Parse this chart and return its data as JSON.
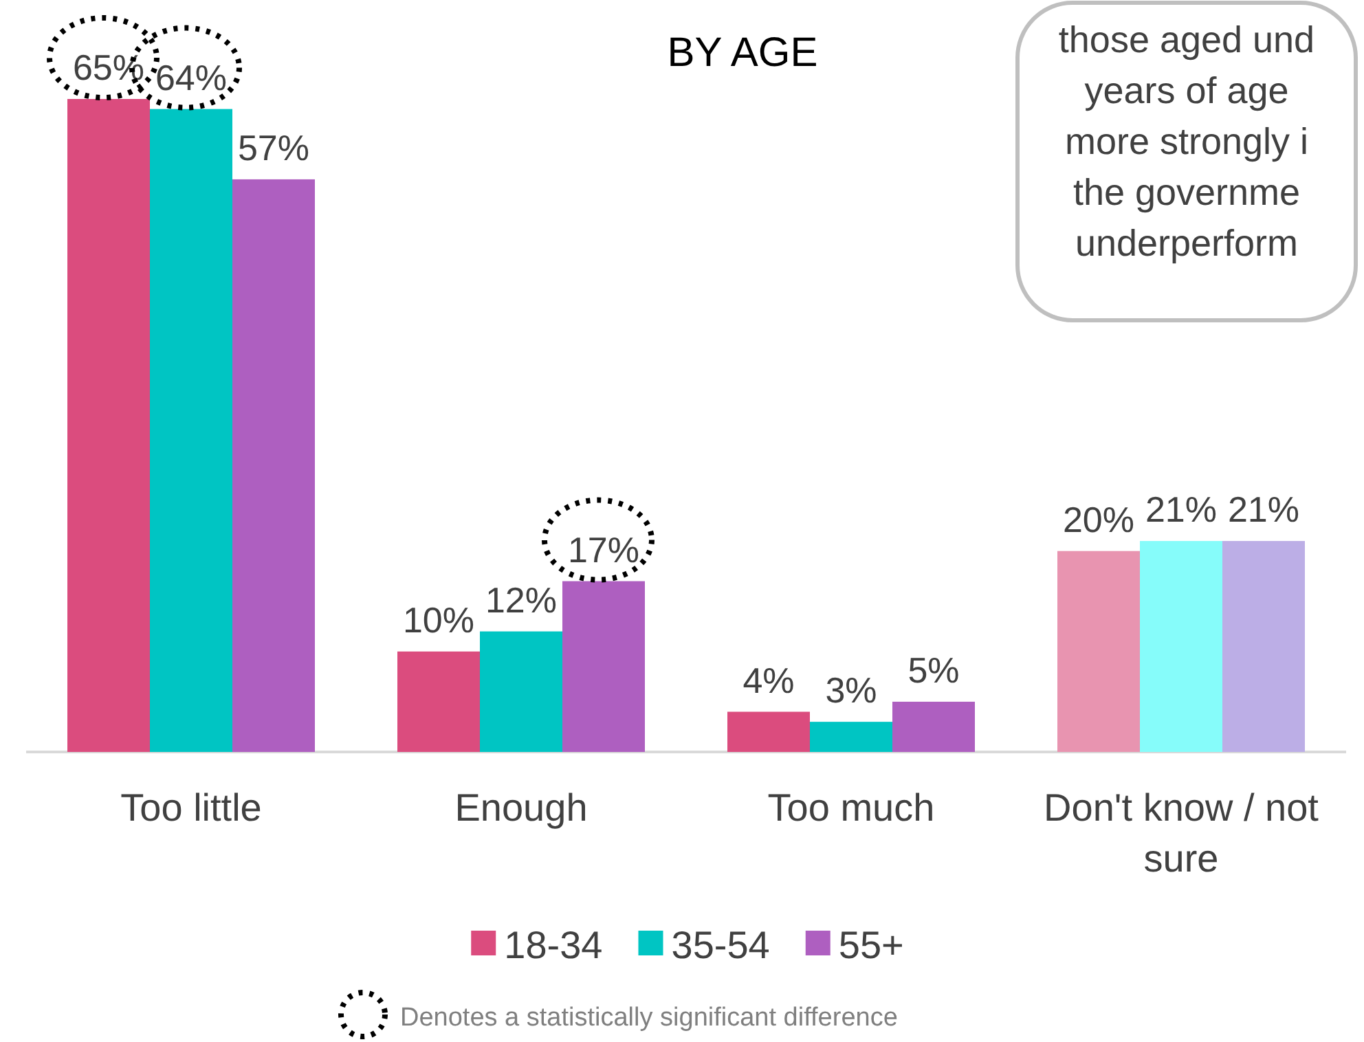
{
  "chart_data": {
    "type": "bar",
    "title": "BY AGE",
    "categories": [
      "Too little",
      "Enough",
      "Too much",
      "Don't know / not sure"
    ],
    "series": [
      {
        "name": "18-34",
        "color": "#db4c7e",
        "colors": [
          "#db4c7e",
          "#db4c7e",
          "#db4c7e",
          "#e894b0"
        ],
        "values": [
          65,
          10,
          4,
          20
        ],
        "value_labels": [
          "65%",
          "10%",
          "4%",
          "20%"
        ]
      },
      {
        "name": "35-54",
        "color": "#00c5c3",
        "colors": [
          "#00c5c3",
          "#00c5c3",
          "#00c5c3",
          "#86fcfa"
        ],
        "values": [
          64,
          12,
          3,
          21
        ],
        "value_labels": [
          "64%",
          "12%",
          "3%",
          "21%"
        ]
      },
      {
        "name": "55+",
        "color": "#ae5fc0",
        "colors": [
          "#ae5fc0",
          "#ae5fc0",
          "#ae5fc0",
          "#bcaee6"
        ],
        "values": [
          57,
          17,
          5,
          21
        ],
        "value_labels": [
          "57%",
          "17%",
          "5%",
          "21%"
        ]
      }
    ],
    "legend": "bottom",
    "annotations": [
      "those aged und\nyears of age\nmore strongly i\nthe governme\nunderperform",
      "Denotes a statistically significant difference"
    ]
  }
}
